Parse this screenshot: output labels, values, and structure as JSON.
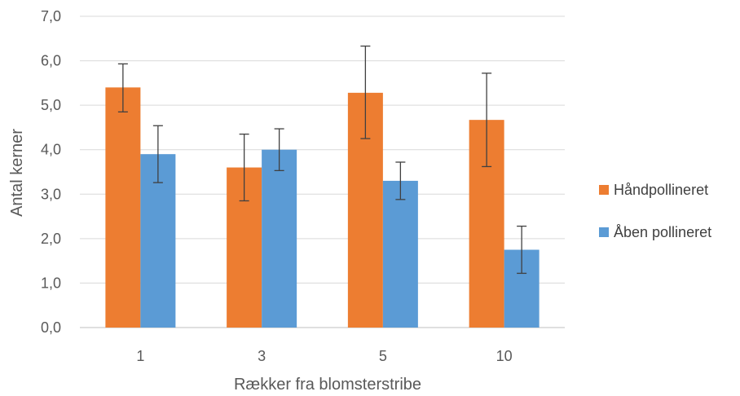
{
  "chart_data": {
    "type": "bar",
    "xlabel": "Rækker fra blomsterstribe",
    "ylabel": "Antal kerner",
    "ylim": [
      0,
      7
    ],
    "yticks": [
      "0,0",
      "1,0",
      "2,0",
      "3,0",
      "4,0",
      "5,0",
      "6,0",
      "7,0"
    ],
    "categories": [
      "1",
      "3",
      "5",
      "10"
    ],
    "grid": true,
    "legend_position": "right",
    "series": [
      {
        "name": "Håndpollineret",
        "color": "#ED7D31",
        "values": [
          5.4,
          3.6,
          5.28,
          4.67
        ],
        "error_low": [
          4.85,
          2.85,
          4.25,
          3.62
        ],
        "error_high": [
          5.93,
          4.35,
          6.33,
          5.72
        ]
      },
      {
        "name": "Åben pollineret",
        "color": "#5B9BD5",
        "values": [
          3.9,
          4.0,
          3.3,
          1.75
        ],
        "error_low": [
          3.26,
          3.53,
          2.88,
          1.22
        ],
        "error_high": [
          4.54,
          4.47,
          3.72,
          2.28
        ]
      }
    ]
  }
}
